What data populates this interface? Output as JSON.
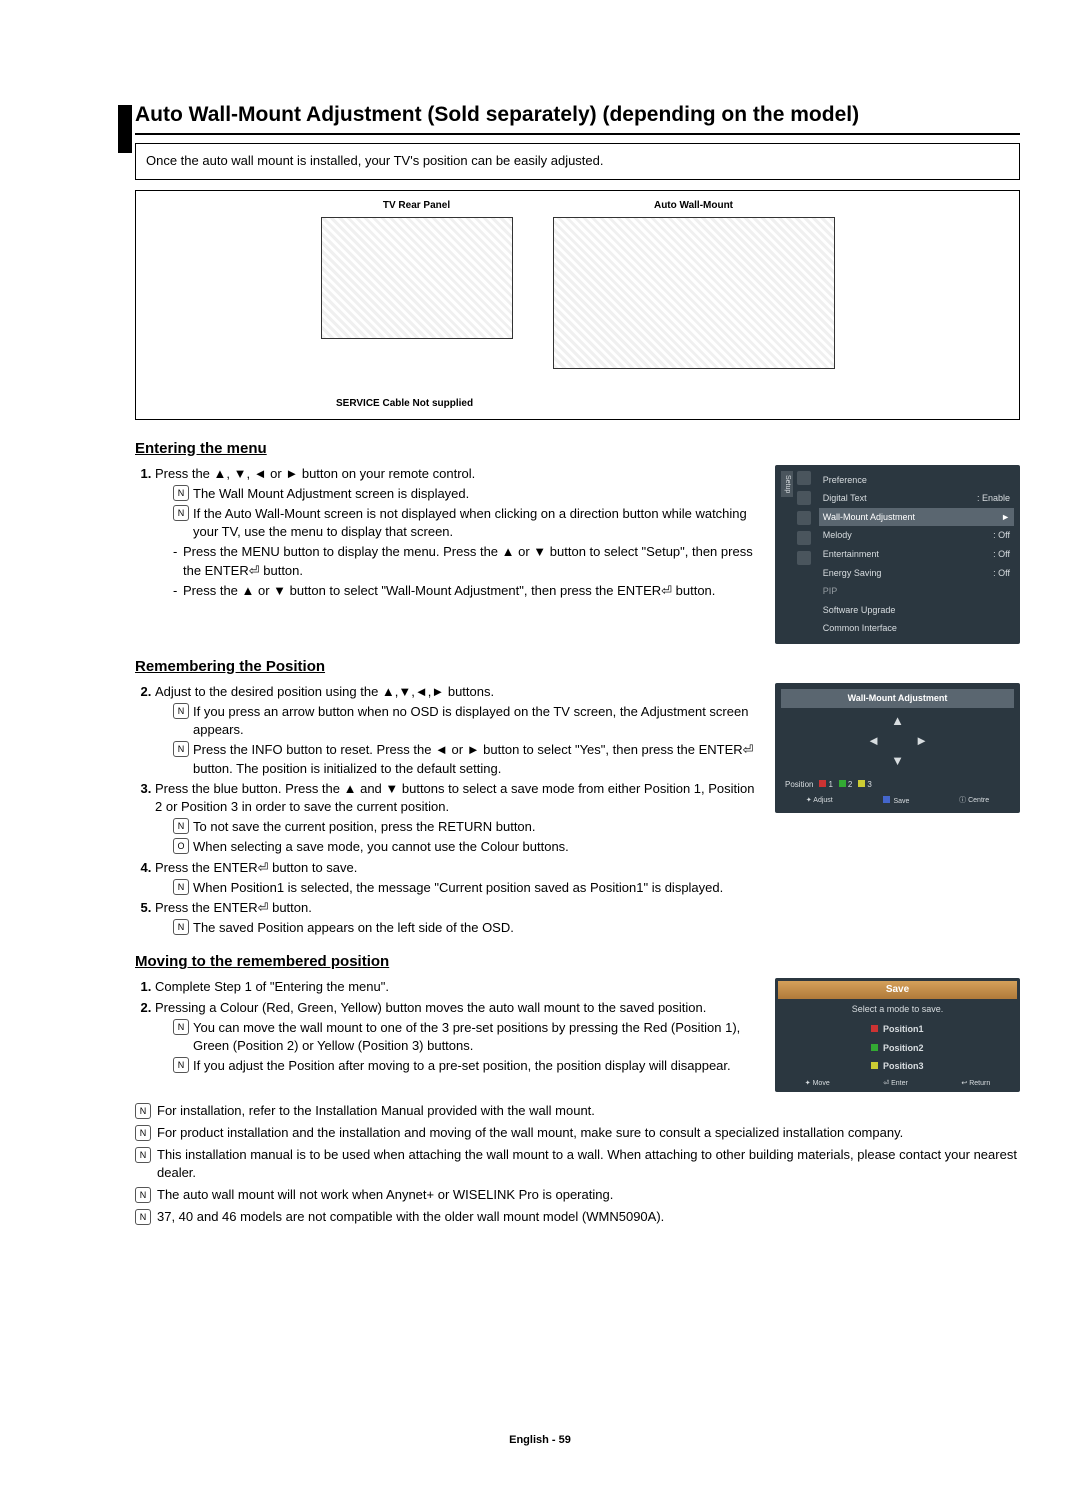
{
  "title": "Auto Wall-Mount Adjustment (Sold separately) (depending on the model)",
  "intro": "Once the auto wall mount is installed, your TV's position can be easily adjusted.",
  "diagram": {
    "left_label": "TV Rear Panel",
    "right_label": "Auto Wall-Mount",
    "cable_label": "SERVICE Cable  Not supplied"
  },
  "section1": {
    "heading": "Entering the menu",
    "step1": "Press the ▲, ▼, ◄ or ► button on your remote control.",
    "notes1": [
      "The Wall Mount Adjustment screen is displayed.",
      "If the Auto Wall-Mount screen is not displayed when clicking on a direction button while watching your TV, use the menu to display that screen."
    ],
    "sub1": "Press the MENU button to display the menu. Press the ▲ or ▼ button to select \"Setup\", then press the ENTER⏎ button.",
    "sub2": "Press the ▲ or ▼ button to select \"Wall-Mount Adjustment\", then press the ENTER⏎ button."
  },
  "osd1": {
    "setup_label": "Setup",
    "items": [
      {
        "label": "Preference",
        "val": ""
      },
      {
        "label": "Digital Text",
        "val": ": Enable"
      },
      {
        "label": "Wall-Mount Adjustment",
        "val": "►",
        "hl": true
      },
      {
        "label": "Melody",
        "val": ": Off"
      },
      {
        "label": "Entertainment",
        "val": ": Off"
      },
      {
        "label": "Energy Saving",
        "val": ": Off"
      },
      {
        "label": "PIP",
        "val": "",
        "dim": true
      },
      {
        "label": "Software Upgrade",
        "val": ""
      },
      {
        "label": "Common Interface",
        "val": ""
      }
    ]
  },
  "section2": {
    "heading": "Remembering the Position",
    "step2": "Adjust to the desired position using the ▲,▼,◄,► buttons.",
    "notes2a": "If you press an arrow button when no OSD is displayed on the TV screen, the Adjustment screen appears.",
    "notes2b": "Press the INFO button to reset. Press the ◄ or ► button to select \"Yes\", then press the ENTER⏎ button. The position is initialized to the default setting.",
    "step3": "Press the blue button. Press the ▲ and ▼ buttons to select a save mode from either Position 1, Position 2 or Position 3 in order to save the current position.",
    "notes3a": "To not save the current position, press the RETURN button.",
    "notes3b": "When selecting a save mode, you cannot use the Colour buttons.",
    "step4": "Press the ENTER⏎ button to save.",
    "notes4": "When Position1 is selected, the message \"Current position saved as Position1\" is displayed.",
    "step5": "Press the ENTER⏎ button.",
    "notes5": "The saved Position appears on the left side of the OSD."
  },
  "osd2": {
    "title": "Wall-Mount Adjustment",
    "position_label": "Position",
    "pos_values": [
      "1",
      "2",
      "3"
    ],
    "footer": [
      "Adjust",
      "Save",
      "Centre"
    ]
  },
  "section3": {
    "heading": "Moving to the remembered position",
    "step1": "Complete Step 1 of \"Entering the menu\".",
    "step2": "Pressing a Colour (Red, Green, Yellow) button moves the auto wall mount to the saved position.",
    "notes2a": "You can move the wall mount to one of the 3 pre-set positions by pressing the Red (Position 1), Green (Position 2) or Yellow (Position 3) buttons.",
    "notes2b": "If you adjust the Position after moving to a pre-set position, the position display will disappear."
  },
  "osd3": {
    "title": "Save",
    "subtitle": "Select a mode to save.",
    "options": [
      "Position1",
      "Position2",
      "Position3"
    ],
    "option_colors": [
      "#c33",
      "#3a3",
      "#cc3"
    ],
    "footer": [
      "Move",
      "Enter",
      "Return"
    ]
  },
  "bottom_notes": [
    "For installation, refer to the Installation Manual provided with the wall mount.",
    "For product installation and the installation and moving of the wall mount, make sure to consult a specialized installation company.",
    "This installation manual is to be used when attaching the wall mount to a wall. When attaching to other building materials, please contact your nearest dealer.",
    "The auto wall mount will not work when Anynet+ or WISELINK Pro is operating.",
    "37, 40 and 46 models are not compatible with the older wall mount model (WMN5090A)."
  ],
  "footer_page": "English - 59",
  "colors": {
    "osd_bg": "#2b3740",
    "osd_text": "#d8dde0",
    "highlight": "#5a6670",
    "save_hdr_a": "#d4a05a",
    "save_hdr_b": "#b07a3a"
  }
}
